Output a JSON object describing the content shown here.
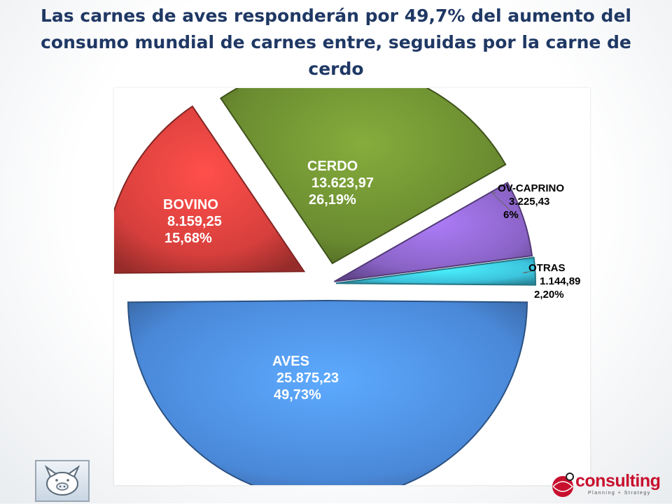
{
  "title": "Las carnes de aves responderán por 49,7% del aumento del consumo mundial de carnes entre, seguidas por la carne de cerdo",
  "chart_data": {
    "type": "pie",
    "title": "Las carnes de aves responderán por 49,7% del aumento del consumo mundial de carnes entre, seguidas por la carne de cerdo",
    "slices": [
      {
        "label": "AVES",
        "value_text": "25.875,23",
        "percent_text": "49,73%",
        "value": 25875.23,
        "percent": 49.73,
        "color": "#4a88d8"
      },
      {
        "label": "BOVINO",
        "value_text": "8.159,25",
        "percent_text": "15,68%",
        "value": 8159.25,
        "percent": 15.68,
        "color": "#d63f3c"
      },
      {
        "label": "CERDO",
        "value_text": "13.623,97",
        "percent_text": "26,19%",
        "value": 13623.97,
        "percent": 26.19,
        "color": "#6a8a30"
      },
      {
        "label": "OV-CAPRINO",
        "value_text": "3.225,43",
        "percent_text": "6%",
        "value": 3225.43,
        "percent": 6.0,
        "color": "#8a63c6"
      },
      {
        "label": "OTRAS",
        "value_text": "1.144,89",
        "percent_text": "2,20%",
        "value": 1144.89,
        "percent": 2.2,
        "color": "#3cc4dd"
      }
    ],
    "style": "exploded pie, 3D-like gradient"
  },
  "logos": {
    "left_icon": "pig-icon",
    "right_brand": "consulting",
    "right_tagline": "Planning + Strategy"
  }
}
